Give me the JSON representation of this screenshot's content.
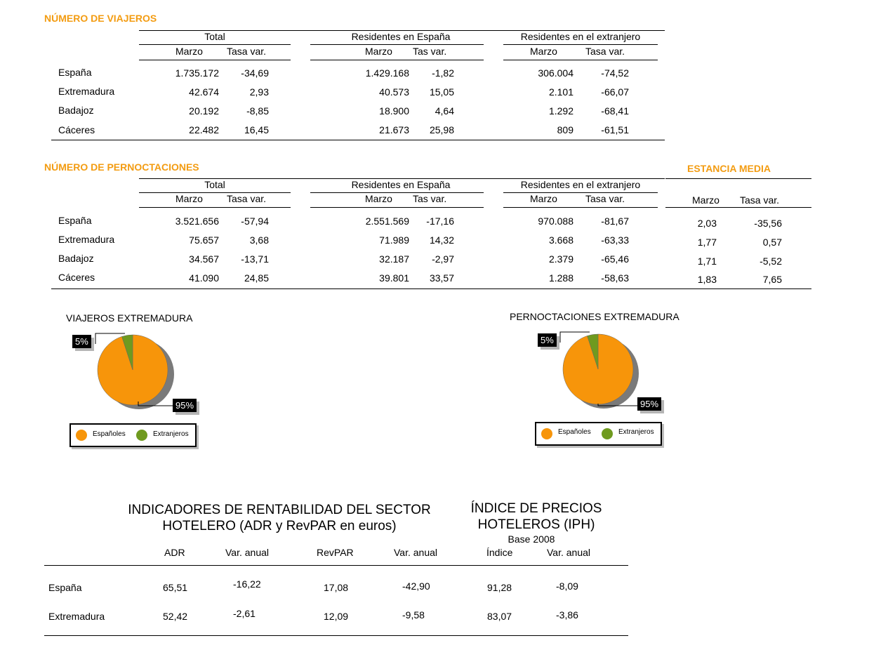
{
  "viajeros": {
    "title": "NÚMERO DE VIAJEROS",
    "groups": [
      "Total",
      "Residentes en España",
      "Residentes en el extranjero"
    ],
    "sub_headers": [
      "Marzo",
      "Tasa var.",
      "Marzo",
      "Tas var.",
      "Marzo",
      "Tasa var."
    ],
    "rows": [
      {
        "name": "España",
        "cells": [
          "1.735.172",
          "-34,69",
          "1.429.168",
          "-1,82",
          "306.004",
          "-74,52"
        ]
      },
      {
        "name": "Extremadura",
        "cells": [
          "42.674",
          "2,93",
          "40.573",
          "15,05",
          "2.101",
          "-66,07"
        ]
      },
      {
        "name": "Badajoz",
        "cells": [
          "20.192",
          "-8,85",
          "18.900",
          "4,64",
          "1.292",
          "-68,41"
        ]
      },
      {
        "name": "Cáceres",
        "cells": [
          "22.482",
          "16,45",
          "21.673",
          "25,98",
          "809",
          "-61,51"
        ]
      }
    ]
  },
  "pernoctaciones": {
    "title": "NÚMERO DE PERNOCTACIONES",
    "groups": [
      "Total",
      "Residentes en España",
      "Residentes en el extranjero"
    ],
    "sub_headers": [
      "Marzo",
      "Tasa var.",
      "Marzo",
      "Tas var.",
      "Marzo",
      "Tasa var."
    ],
    "rows": [
      {
        "name": "España",
        "cells": [
          "3.521.656",
          "-57,94",
          "2.551.569",
          "-17,16",
          "970.088",
          "-81,67"
        ]
      },
      {
        "name": "Extremadura",
        "cells": [
          "75.657",
          "3,68",
          "71.989",
          "14,32",
          "3.668",
          "-63,33"
        ]
      },
      {
        "name": "Badajoz",
        "cells": [
          "34.567",
          "-13,71",
          "32.187",
          "-2,97",
          "2.379",
          "-65,46"
        ]
      },
      {
        "name": "Cáceres",
        "cells": [
          "41.090",
          "24,85",
          "39.801",
          "33,57",
          "1.288",
          "-58,63"
        ]
      }
    ]
  },
  "estancia": {
    "title": "ESTANCIA MEDIA",
    "headers": [
      "Marzo",
      "Tasa var."
    ],
    "rows": [
      [
        "2,03",
        "-35,56"
      ],
      [
        "1,77",
        "0,57"
      ],
      [
        "1,71",
        "-5,52"
      ],
      [
        "1,83",
        "7,65"
      ]
    ]
  },
  "charts": [
    {
      "title": "VIAJEROS EXTREMADURA",
      "type": "pie",
      "slices": [
        {
          "name": "Españoles",
          "value": 95,
          "label": "95%",
          "color": "#f7950a"
        },
        {
          "name": "Extranjeros",
          "value": 5,
          "label": "5%",
          "color": "#6f9a1f"
        }
      ]
    },
    {
      "title": "PERNOCTACIONES EXTREMADURA",
      "type": "pie",
      "slices": [
        {
          "name": "Españoles",
          "value": 95,
          "label": "95%",
          "color": "#f7950a"
        },
        {
          "name": "Extranjeros",
          "value": 5,
          "label": "5%",
          "color": "#6f9a1f"
        }
      ]
    }
  ],
  "rentabilidad": {
    "title_line1": "INDICADORES DE RENTABILIDAD DEL SECTOR",
    "title_line2": "HOTELERO (ADR y RevPAR en euros)",
    "headers": [
      "ADR",
      "Var. anual",
      "RevPAR",
      "Var. anual"
    ]
  },
  "iph": {
    "title_line1": "ÍNDICE DE PRECIOS",
    "title_line2": "HOTELEROS (IPH)",
    "base": "Base 2008",
    "headers": [
      "Índice",
      "Var. anual"
    ]
  },
  "bottom_rows": [
    {
      "name": "España",
      "cells": [
        "65,51",
        "-16,22",
        "17,08",
        "-42,90",
        "91,28",
        "-8,09"
      ]
    },
    {
      "name": "Extremadura",
      "cells": [
        "52,42",
        "-2,61",
        "12,09",
        "-9,58",
        "83,07",
        "-3,86"
      ]
    }
  ]
}
